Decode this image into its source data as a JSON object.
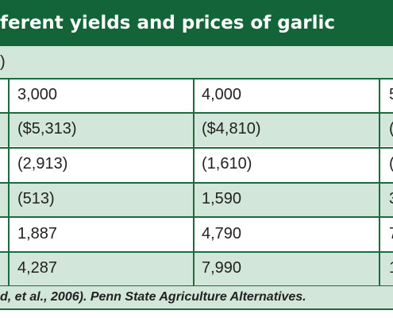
{
  "title": "ferent yields and prices of garlic",
  "subtitle": ")",
  "rows": [
    [
      "3,000",
      "4,000",
      "5"
    ],
    [
      "($5,313)",
      "($4,810)",
      "("
    ],
    [
      "(2,913)",
      "(1,610)",
      "("
    ],
    [
      "(513)",
      "1,590",
      "3"
    ],
    [
      "1,887",
      "4,790",
      "7"
    ],
    [
      "4,287",
      "7,990",
      "1"
    ]
  ],
  "source": "d, et al., 2006). Penn State Agriculture Alternatives.",
  "colors": {
    "header_bg": "#14643a",
    "shaded_bg": "#d3e6da",
    "rule": "#1d6a3f"
  }
}
